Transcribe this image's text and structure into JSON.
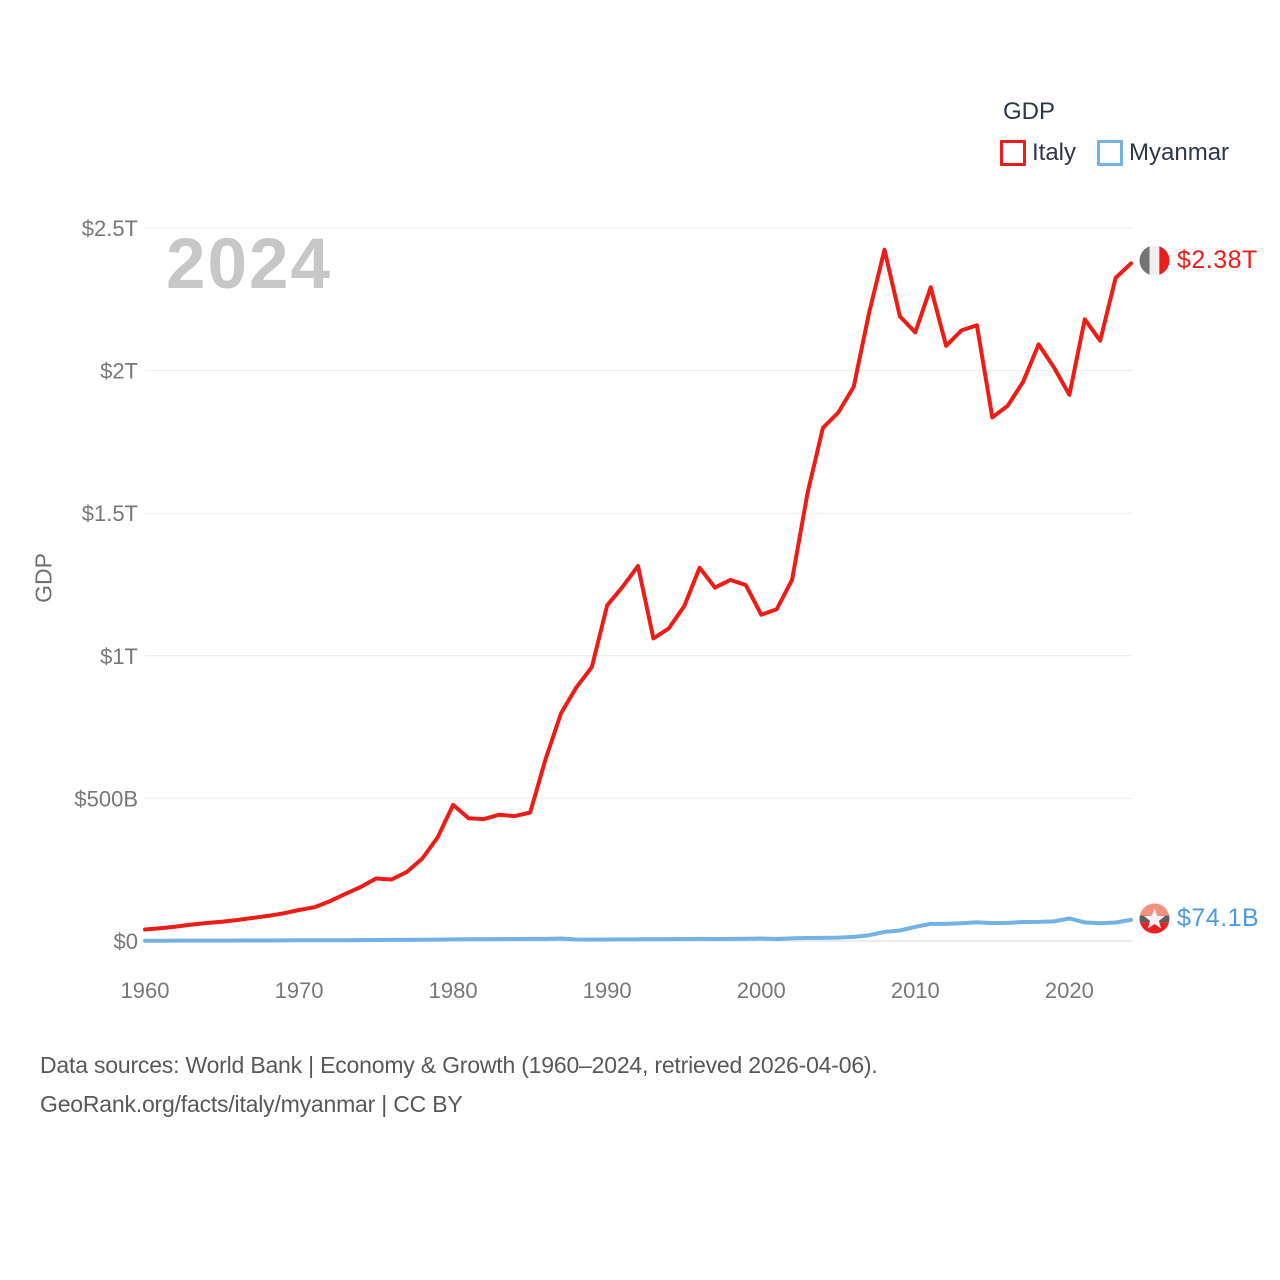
{
  "watermark": "2024",
  "legend": {
    "title": "GDP",
    "items": [
      {
        "label": "Italy",
        "color": "#ee1c17"
      },
      {
        "label": "Myanmar",
        "color": "#74b2e4"
      }
    ]
  },
  "y_axis": {
    "label": "GDP",
    "ticks": [
      {
        "label": "$0",
        "value": 0
      },
      {
        "label": "$500B",
        "value": 500
      },
      {
        "label": "$1T",
        "value": 1000
      },
      {
        "label": "$1.5T",
        "value": 1500
      },
      {
        "label": "$2T",
        "value": 2000
      },
      {
        "label": "$2.5T",
        "value": 2500
      }
    ]
  },
  "x_axis": {
    "ticks": [
      1960,
      1970,
      1980,
      1990,
      2000,
      2010,
      2020
    ]
  },
  "end_labels": {
    "italy": {
      "value": "$2.38T",
      "color": "#ee1c17",
      "flag": "italy-flag"
    },
    "myanmar": {
      "value": "$74.1B",
      "color": "#4b9ae2",
      "flag": "myanmar-flag"
    }
  },
  "footer": {
    "line1": "Data sources: World Bank | Economy & Growth (1960–2024, retrieved 2026-04-06).",
    "line2": "GeoRank.org/facts/italy/myanmar | CC BY"
  },
  "chart_data": {
    "type": "line",
    "title": "GDP",
    "xlabel": "",
    "ylabel": "GDP",
    "unit": "billions of current US$",
    "ylim": [
      0,
      2500
    ],
    "grid": "horizontal",
    "legend_position": "top-right",
    "x": [
      1960,
      1961,
      1962,
      1963,
      1964,
      1965,
      1966,
      1967,
      1968,
      1969,
      1970,
      1971,
      1972,
      1973,
      1974,
      1975,
      1976,
      1977,
      1978,
      1979,
      1980,
      1981,
      1982,
      1983,
      1984,
      1985,
      1986,
      1987,
      1988,
      1989,
      1990,
      1991,
      1992,
      1993,
      1994,
      1995,
      1996,
      1997,
      1998,
      1999,
      2000,
      2001,
      2002,
      2003,
      2004,
      2005,
      2006,
      2007,
      2008,
      2009,
      2010,
      2011,
      2012,
      2013,
      2014,
      2015,
      2016,
      2017,
      2018,
      2019,
      2020,
      2021,
      2022,
      2023,
      2024
    ],
    "series": [
      {
        "name": "Italy",
        "color": "#ee1c17",
        "end_value_label": "$2.38T",
        "values": [
          40.4,
          44.8,
          50.4,
          57.6,
          63.2,
          67.8,
          73.7,
          81.1,
          87.9,
          97.1,
          108.7,
          118.5,
          139.4,
          165.2,
          189.5,
          219.1,
          215.7,
          242.3,
          289.3,
          363.6,
          477.3,
          430.7,
          427.3,
          443.0,
          437.9,
          450.7,
          638.0,
          798.2,
          889.4,
          960.0,
          1177.0,
          1242.0,
          1315.0,
          1061.0,
          1096.0,
          1174.0,
          1309.0,
          1239.0,
          1266.0,
          1248.0,
          1144.0,
          1163.0,
          1267.0,
          1570.0,
          1799.0,
          1853.0,
          1943.0,
          2203.0,
          2424.0,
          2190.0,
          2134.0,
          2292.0,
          2087.0,
          2141.0,
          2159.0,
          1836.0,
          1877.0,
          1961.0,
          2092.0,
          2011.0,
          1915.0,
          2180.0,
          2105.0,
          2325.0,
          2376.0
        ]
      },
      {
        "name": "Myanmar",
        "color": "#74b2e4",
        "end_value_label": "$74.1B",
        "values": [
          1.2,
          1.2,
          1.3,
          1.3,
          1.4,
          1.5,
          1.6,
          1.7,
          1.9,
          2.1,
          2.3,
          2.4,
          2.5,
          2.8,
          3.1,
          3.5,
          3.7,
          4.0,
          4.5,
          5.0,
          5.7,
          6.0,
          6.3,
          6.7,
          7.0,
          7.2,
          7.5,
          8.6,
          5.3,
          5.0,
          5.2,
          5.5,
          5.9,
          6.3,
          6.6,
          7.0,
          7.3,
          7.0,
          7.2,
          7.6,
          8.9,
          7.0,
          9.6,
          10.5,
          10.7,
          12.0,
          14.5,
          20.2,
          31.9,
          36.9,
          49.5,
          60.0,
          59.9,
          62.4,
          65.4,
          62.7,
          63.3,
          66.7,
          66.8,
          68.8,
          78.9,
          65.1,
          62.3,
          64.8,
          74.1
        ]
      }
    ]
  }
}
